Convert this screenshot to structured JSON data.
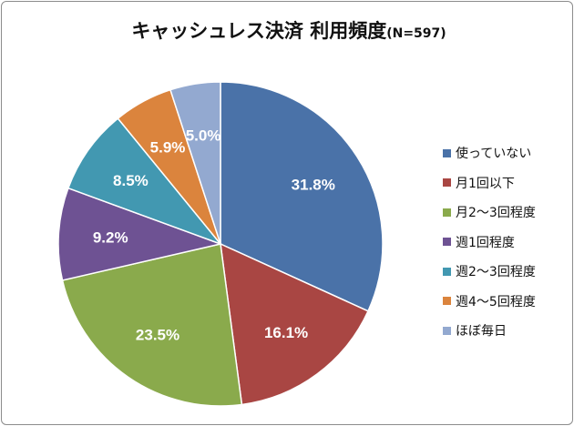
{
  "chart_data": {
    "type": "pie",
    "title": "キャッシュレス決済 利用頻度",
    "subtitle": "(N=597)",
    "categories": [
      "使っていない",
      "月1回以下",
      "月2～3回程度",
      "週1回程度",
      "週2～3回程度",
      "週4～5回程度",
      "ほぼ毎日"
    ],
    "values": [
      31.8,
      16.1,
      23.5,
      9.2,
      8.5,
      5.9,
      5.0
    ],
    "labels": [
      "31.8%",
      "16.1%",
      "23.5%",
      "9.2%",
      "8.5%",
      "5.9%",
      "5.0%"
    ],
    "colors": [
      "#4a72a8",
      "#a94643",
      "#8aaa4c",
      "#6e5293",
      "#4298b1",
      "#db843d",
      "#93a9d0"
    ],
    "legend_position": "right"
  }
}
